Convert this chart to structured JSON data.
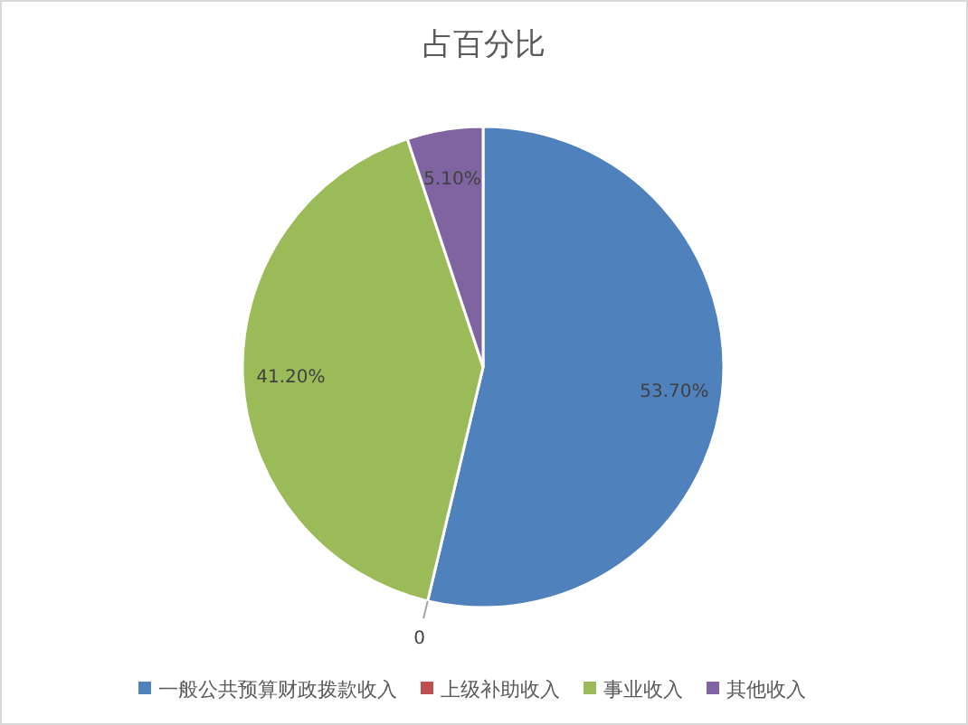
{
  "chart_data": {
    "type": "pie",
    "title": "占百分比",
    "categories": [
      "一般公共预算财政拨款收入",
      "上级补助收入",
      "事业收入",
      "其他收入"
    ],
    "values": [
      53.7,
      0,
      41.2,
      5.1
    ],
    "colors": [
      "#4f81bd",
      "#c0504d",
      "#9bbb59",
      "#8064a2"
    ],
    "value_labels": [
      "53.70%",
      "0",
      "41.20%",
      "5.10%"
    ],
    "legend": "bottom"
  }
}
